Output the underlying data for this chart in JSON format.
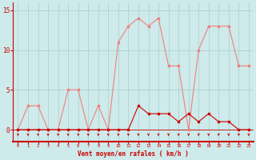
{
  "x": [
    0,
    1,
    2,
    3,
    4,
    5,
    6,
    7,
    8,
    9,
    10,
    11,
    12,
    13,
    14,
    15,
    16,
    17,
    18,
    19,
    20,
    21,
    22,
    23
  ],
  "rafales": [
    0,
    3,
    3,
    0,
    0,
    5,
    5,
    0,
    3,
    0,
    11,
    13,
    14,
    13,
    14,
    8,
    8,
    0,
    10,
    13,
    13,
    13,
    8,
    8
  ],
  "vent_moyen": [
    0,
    0,
    0,
    0,
    0,
    0,
    0,
    0,
    0,
    0,
    0,
    0,
    3,
    2,
    2,
    2,
    1,
    2,
    1,
    2,
    1,
    1,
    0,
    0
  ],
  "line_color_rafales": "#f08080",
  "line_color_vent": "#cc0000",
  "marker_color": "#cc0000",
  "bg_color": "#ceeaea",
  "grid_color": "#aacccc",
  "axis_label": "Vent moyen/en rafales ( km/h )",
  "yticks": [
    0,
    5,
    10,
    15
  ],
  "ylim": [
    -1.5,
    16
  ],
  "xlim": [
    -0.5,
    23.5
  ]
}
